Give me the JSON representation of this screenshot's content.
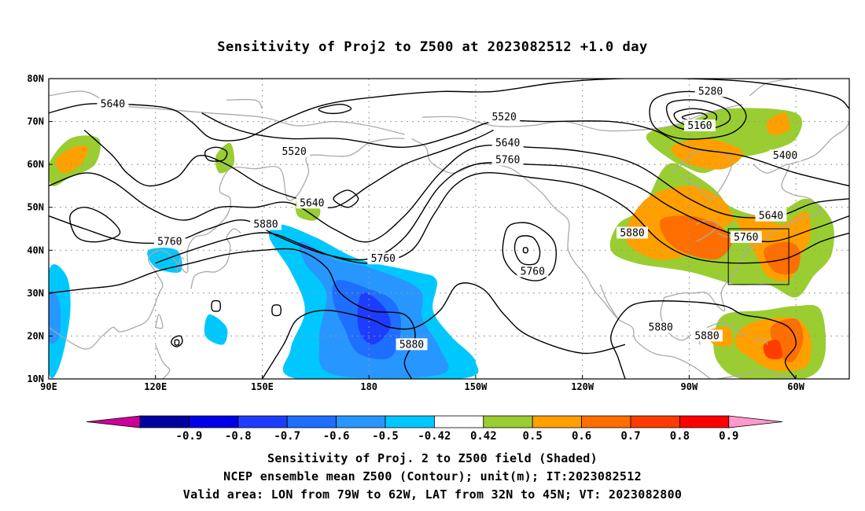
{
  "title": "Sensitivity of Proj2 to Z500 at 2023082512 +1.0 day",
  "map": {
    "lon_min": 90,
    "lon_max": 315,
    "lat_min": 10,
    "lat_max": 80,
    "lat_ticks": [
      {
        "value": 80,
        "label": "80N"
      },
      {
        "value": 70,
        "label": "70N"
      },
      {
        "value": 60,
        "label": "60N"
      },
      {
        "value": 50,
        "label": "50N"
      },
      {
        "value": 40,
        "label": "40N"
      },
      {
        "value": 30,
        "label": "30N"
      },
      {
        "value": 20,
        "label": "20N"
      },
      {
        "value": 10,
        "label": "10N"
      }
    ],
    "lon_ticks": [
      {
        "value": 90,
        "label": "90E"
      },
      {
        "value": 120,
        "label": "120E"
      },
      {
        "value": 150,
        "label": "150E"
      },
      {
        "value": 180,
        "label": "180"
      },
      {
        "value": 210,
        "label": "150W"
      },
      {
        "value": 240,
        "label": "120W"
      },
      {
        "value": 270,
        "label": "90W"
      },
      {
        "value": 300,
        "label": "60W"
      }
    ],
    "grid": true,
    "valid_box": {
      "lon_min": 281,
      "lon_max": 298,
      "lat_min": 32,
      "lat_max": 45
    },
    "colors": {
      "coast": "#aaaaaa",
      "contour": "#000000",
      "grid": "#999999"
    }
  },
  "contour_labels": [
    {
      "text": "5640",
      "lon": 108,
      "lat": 74
    },
    {
      "text": "5520",
      "lon": 159,
      "lat": 63
    },
    {
      "text": "5640",
      "lon": 164,
      "lat": 51
    },
    {
      "text": "5880",
      "lon": 151,
      "lat": 46
    },
    {
      "text": "5760",
      "lon": 124,
      "lat": 42
    },
    {
      "text": "5760",
      "lon": 184,
      "lat": 38
    },
    {
      "text": "5520",
      "lon": 218,
      "lat": 71
    },
    {
      "text": "5640",
      "lon": 219,
      "lat": 65
    },
    {
      "text": "5760",
      "lon": 219,
      "lat": 61
    },
    {
      "text": "5760",
      "lon": 226,
      "lat": 35
    },
    {
      "text": "5280",
      "lon": 276,
      "lat": 77
    },
    {
      "text": "5160",
      "lon": 273,
      "lat": 69
    },
    {
      "text": "5400",
      "lon": 297,
      "lat": 62
    },
    {
      "text": "5640",
      "lon": 293,
      "lat": 48
    },
    {
      "text": "5880",
      "lon": 254,
      "lat": 44
    },
    {
      "text": "5760",
      "lon": 286,
      "lat": 43
    },
    {
      "text": "5880",
      "lon": 262,
      "lat": 22
    },
    {
      "text": "5880",
      "lon": 275,
      "lat": 20
    },
    {
      "text": "5880",
      "lon": 192,
      "lat": 18
    }
  ],
  "colorbar": {
    "labels": [
      "-0.9",
      "-0.8",
      "-0.7",
      "-0.6",
      "-0.5",
      "-0.42",
      "0.42",
      "0.5",
      "0.6",
      "0.7",
      "0.8",
      "0.9"
    ],
    "low_color": "#cc0099",
    "high_color": "#ff99cc",
    "colors": [
      "#0000a0",
      "#0000e6",
      "#1e3cff",
      "#1e6eff",
      "#2896ff",
      "#00c8ff",
      "#ffffff",
      "#9acd32",
      "#ffa000",
      "#ff6e00",
      "#ff3c00",
      "#ff0000"
    ]
  },
  "footer": {
    "line1": "Sensitivity of Proj. 2 to Z500 field (Shaded)",
    "line2": "NCEP ensemble mean Z500 (Contour); unit(m); IT:2023082512",
    "line3": "Valid area: LON from 79W to 62W, LAT from 32N to 45N; VT: 2023082800"
  }
}
